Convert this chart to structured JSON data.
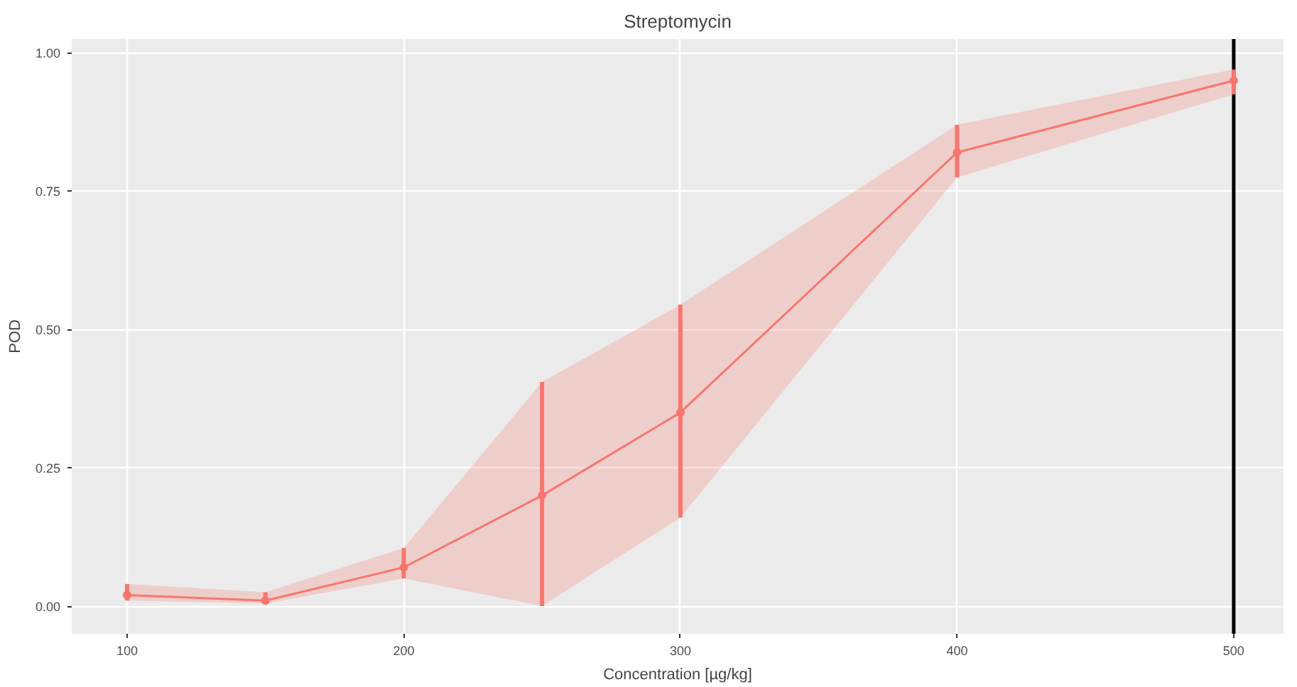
{
  "chart_data": {
    "type": "line",
    "title": "Streptomycin",
    "xlabel": "Concentration [µg/kg]",
    "ylabel": "POD",
    "x": [
      100,
      150,
      200,
      250,
      300,
      400,
      500
    ],
    "series": [
      {
        "color": "#f8766d",
        "values": [
          0.02,
          0.01,
          0.07,
          0.2,
          0.35,
          0.82,
          0.95
        ],
        "lower": [
          0.01,
          0.005,
          0.05,
          0.0,
          0.16,
          0.775,
          0.925
        ],
        "upper": [
          0.04,
          0.025,
          0.105,
          0.405,
          0.545,
          0.87,
          0.97
        ],
        "errors": [
          [
            0.01,
            0.04
          ],
          [
            0.005,
            0.025
          ],
          [
            0.05,
            0.105
          ],
          [
            0.0,
            0.405
          ],
          [
            0.16,
            0.545
          ],
          [
            0.775,
            0.87
          ],
          [
            0.925,
            0.97
          ]
        ]
      }
    ],
    "xlim": [
      80,
      518
    ],
    "ylim": [
      -0.05,
      1.025
    ],
    "xticks": [
      100,
      200,
      300,
      400,
      500
    ],
    "yticks": [
      {
        "value": 0,
        "label": "0.00"
      },
      {
        "value": 0.25,
        "label": "0.25"
      },
      {
        "value": 0.5,
        "label": "0.50"
      },
      {
        "value": 0.75,
        "label": "0.75"
      },
      {
        "value": 1,
        "label": "1.00"
      }
    ],
    "ref_lines": [
      {
        "axis": "x",
        "value": 500,
        "color": "#000000"
      }
    ],
    "grid": true,
    "marker": "circle",
    "line_style": "solid"
  }
}
